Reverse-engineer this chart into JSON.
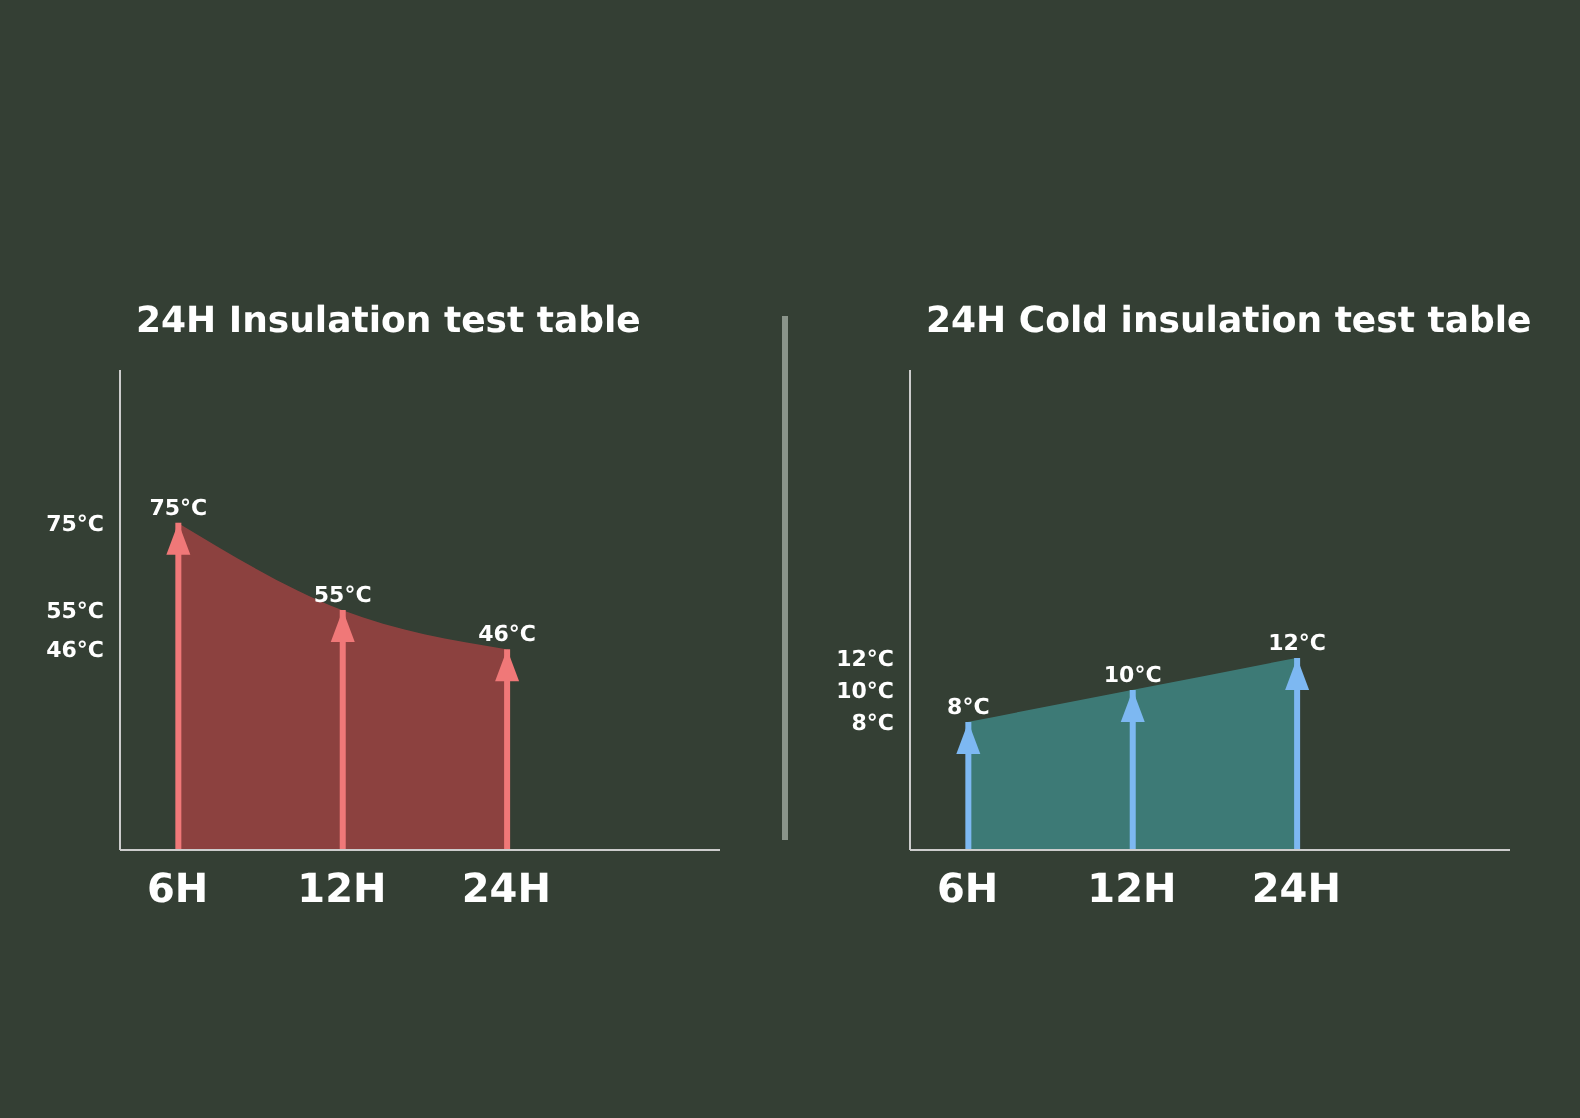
{
  "chart_data": [
    {
      "type": "bar",
      "title": "24H Insulation test table",
      "categories": [
        "6H",
        "12H",
        "24H"
      ],
      "ylim": [
        0,
        110
      ],
      "yticks": [
        {
          "value": 46,
          "label": "46°C"
        },
        {
          "value": 55,
          "label": "55°C"
        },
        {
          "value": 75,
          "label": "75°C"
        }
      ],
      "legend": false,
      "grid": false,
      "series": [
        {
          "type": "area",
          "color": "#9c4242",
          "values": [
            75,
            55,
            46
          ]
        },
        {
          "color": "#f07878",
          "values": [
            75,
            55,
            46
          ],
          "value_labels": [
            "75°C",
            "55°C",
            "46°C"
          ]
        }
      ]
    },
    {
      "type": "bar",
      "title": "24H Cold insulation test table",
      "categories": [
        "6H",
        "12H",
        "24H"
      ],
      "ylim": [
        0,
        30
      ],
      "yticks": [
        {
          "value": 8,
          "label": "8°C"
        },
        {
          "value": 10,
          "label": "10°C"
        },
        {
          "value": 12,
          "label": "12°C"
        }
      ],
      "legend": false,
      "grid": false,
      "series": [
        {
          "type": "area",
          "color": "#3f8582",
          "values": [
            8,
            10,
            12
          ]
        },
        {
          "color": "#7db8f2",
          "values": [
            8,
            10,
            12
          ],
          "value_labels": [
            "8°C",
            "10°C",
            "12°C"
          ]
        }
      ]
    }
  ]
}
